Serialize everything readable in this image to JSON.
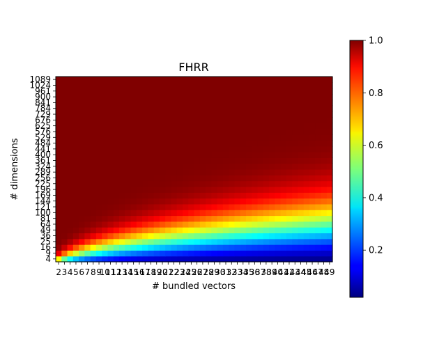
{
  "chart_data": {
    "type": "heatmap",
    "title": "FHRR",
    "xlabel": "# bundled vectors",
    "ylabel": "# dimensions",
    "x": [
      2,
      3,
      4,
      5,
      6,
      7,
      8,
      9,
      10,
      11,
      12,
      13,
      14,
      15,
      16,
      17,
      18,
      19,
      20,
      21,
      22,
      23,
      24,
      25,
      26,
      27,
      28,
      29,
      30,
      31,
      32,
      33,
      34,
      35,
      36,
      37,
      38,
      39,
      40,
      41,
      42,
      43,
      44,
      45,
      46,
      47,
      48,
      49
    ],
    "y": [
      4,
      9,
      16,
      25,
      36,
      49,
      64,
      81,
      100,
      121,
      144,
      169,
      196,
      225,
      256,
      289,
      324,
      361,
      400,
      441,
      484,
      529,
      576,
      625,
      676,
      729,
      784,
      841,
      900,
      961,
      1024,
      1089
    ],
    "x_tick_labels": [
      "2",
      "3",
      "4",
      "5",
      "6",
      "7",
      "8",
      "9",
      "10",
      "11",
      "12",
      "13",
      "14",
      "15",
      "16",
      "17",
      "18",
      "19",
      "20",
      "21",
      "22",
      "23",
      "24",
      "25",
      "26",
      "27",
      "28",
      "29",
      "30",
      "31",
      "32",
      "33",
      "34",
      "35",
      "36",
      "37",
      "38",
      "39",
      "40",
      "41",
      "42",
      "43",
      "44",
      "45",
      "46",
      "47",
      "48",
      "49"
    ],
    "y_tick_labels": [
      "4",
      "9",
      "16",
      "25",
      "36",
      "49",
      "64",
      "81",
      "100",
      "121",
      "144",
      "169",
      "196",
      "225",
      "256",
      "289",
      "324",
      "361",
      "400",
      "441",
      "484",
      "529",
      "576",
      "625",
      "676",
      "729",
      "784",
      "841",
      "900",
      "961",
      "1024",
      "1089"
    ],
    "colormap": "jet",
    "colorbar": {
      "range": [
        0.02,
        1.0
      ],
      "tick_labels": [
        "0.2",
        "0.4",
        "0.6",
        "0.8",
        "1.0"
      ]
    },
    "value_model": "accuracy ≈ 1 − exp(−dimensions / (2 · bundled vectors)), from 0.02 (bottom-right) to 1.0 (top-left)",
    "grid": false
  }
}
